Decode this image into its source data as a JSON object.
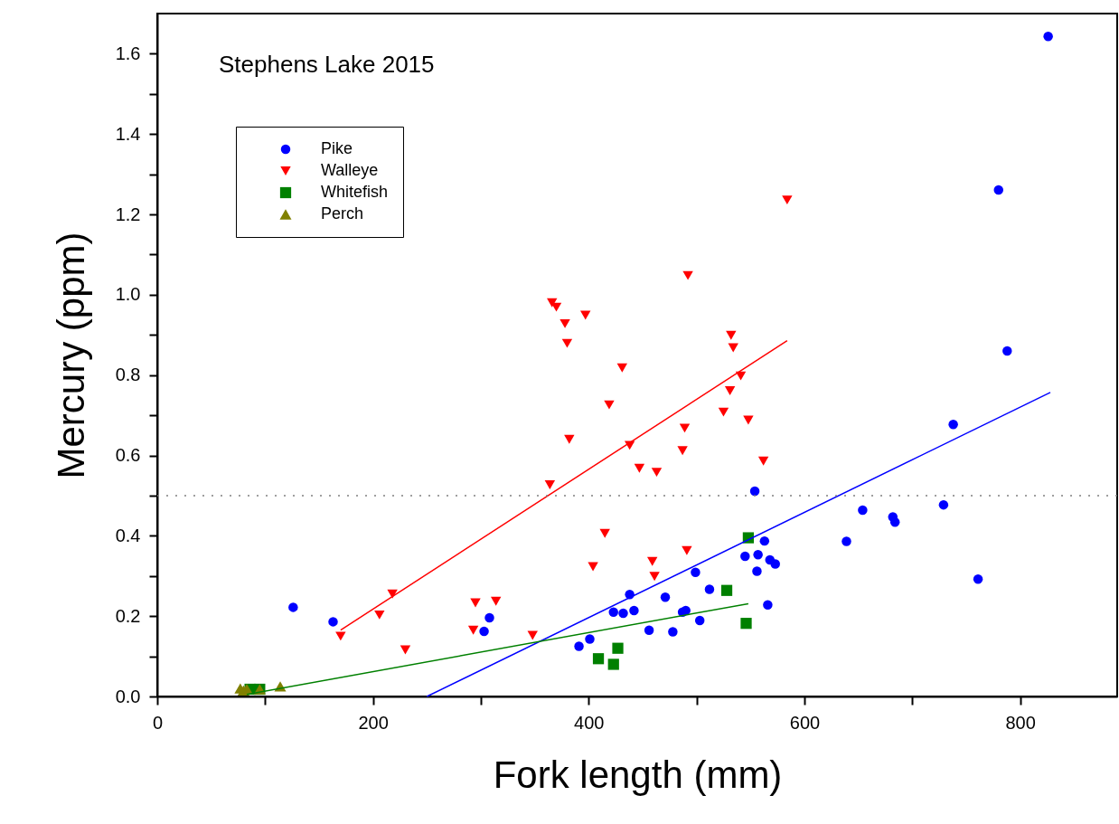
{
  "chart_data": {
    "type": "scatter",
    "title": "Stephens Lake 2015",
    "xlabel": "Fork length  (mm)",
    "ylabel": "Mercury  (ppm)",
    "xlim": [
      0,
      890
    ],
    "ylim": [
      0,
      1.7
    ],
    "xticks": [
      0,
      {
        "value": 100,
        "label": null
      },
      200,
      {
        "value": 300,
        "label": null
      },
      400,
      {
        "value": 500,
        "label": null
      },
      600,
      {
        "value": 700,
        "label": null
      },
      800
    ],
    "yticks": [
      {
        "value": 0,
        "label": "0.0"
      },
      {
        "value": 0.1,
        "label": null
      },
      {
        "value": 0.2,
        "label": "0.2"
      },
      {
        "value": 0.3,
        "label": null
      },
      {
        "value": 0.4,
        "label": "0.4"
      },
      {
        "value": 0.5,
        "label": null
      },
      {
        "value": 0.6,
        "label": "0.6"
      },
      {
        "value": 0.7,
        "label": null
      },
      {
        "value": 0.8,
        "label": "0.8"
      },
      {
        "value": 0.9,
        "label": null
      },
      {
        "value": 1.0,
        "label": "1.0"
      },
      {
        "value": 1.1,
        "label": null
      },
      {
        "value": 1.2,
        "label": "1.2"
      },
      {
        "value": 1.3,
        "label": null
      },
      {
        "value": 1.4,
        "label": "1.4"
      },
      {
        "value": 1.5,
        "label": null
      },
      {
        "value": 1.6,
        "label": "1.6"
      }
    ],
    "grid": false,
    "legend": "top left",
    "ref_lines": [
      {
        "axis": "y",
        "value": 0.5,
        "color": "#808080",
        "line_style": "dotted"
      }
    ],
    "series": [
      {
        "name": "Pike",
        "type": "scatter",
        "marker": "circle",
        "color": "#0000ff",
        "x": [
          126,
          163,
          303,
          308,
          826,
          780,
          788,
          738,
          654,
          682,
          684,
          729,
          639,
          761,
          554,
          563,
          545,
          557,
          568,
          573,
          556,
          499,
          512,
          438,
          471,
          423,
          432,
          442,
          487,
          490,
          566,
          503,
          456,
          478,
          391,
          401
        ],
        "values": [
          0.222,
          0.186,
          0.162,
          0.196,
          1.643,
          1.261,
          0.86,
          0.677,
          0.464,
          0.447,
          0.434,
          0.477,
          0.386,
          0.292,
          0.511,
          0.387,
          0.349,
          0.353,
          0.34,
          0.33,
          0.312,
          0.309,
          0.267,
          0.254,
          0.247,
          0.21,
          0.207,
          0.214,
          0.21,
          0.214,
          0.228,
          0.189,
          0.165,
          0.161,
          0.125,
          0.143
        ]
      },
      {
        "name": "Walleye",
        "type": "scatter",
        "marker": "triangle-down",
        "color": "#ff0000",
        "x": [
          170,
          206,
          218,
          230,
          295,
          293,
          314,
          584,
          492,
          366,
          370,
          397,
          378,
          380,
          532,
          534,
          431,
          541,
          531,
          419,
          525,
          548,
          489,
          382,
          438,
          487,
          562,
          447,
          463,
          364,
          415,
          491,
          404,
          459,
          461,
          348
        ],
        "values": [
          0.15,
          0.203,
          0.255,
          0.116,
          0.233,
          0.165,
          0.237,
          1.236,
          1.048,
          0.98,
          0.969,
          0.949,
          0.928,
          0.879,
          0.899,
          0.868,
          0.818,
          0.798,
          0.761,
          0.726,
          0.708,
          0.688,
          0.668,
          0.64,
          0.625,
          0.612,
          0.586,
          0.568,
          0.558,
          0.527,
          0.406,
          0.363,
          0.323,
          0.336,
          0.299,
          0.152
        ]
      },
      {
        "name": "Whitefish",
        "type": "scatter",
        "marker": "square",
        "color": "#008000",
        "x": [
          86,
          95,
          548,
          528,
          546,
          427,
          409,
          423
        ],
        "values": [
          0.018,
          0.018,
          0.395,
          0.264,
          0.182,
          0.12,
          0.094,
          0.08
        ]
      },
      {
        "name": "Perch",
        "type": "scatter",
        "marker": "triangle",
        "color": "#808000",
        "x": [
          77,
          80,
          83,
          95,
          114
        ],
        "values": [
          0.02,
          0.015,
          0.019,
          0.018,
          0.025
        ]
      },
      {
        "type": "line",
        "color": "#ff0000",
        "x": [
          170,
          584
        ],
        "values": [
          0.165,
          0.886
        ]
      },
      {
        "type": "line",
        "color": "#0000ff",
        "x": [
          250,
          828
        ],
        "values": [
          0.0,
          0.757
        ]
      },
      {
        "type": "line",
        "color": "#008000",
        "x": [
          83,
          548
        ],
        "values": [
          0.005,
          0.231
        ]
      }
    ]
  }
}
